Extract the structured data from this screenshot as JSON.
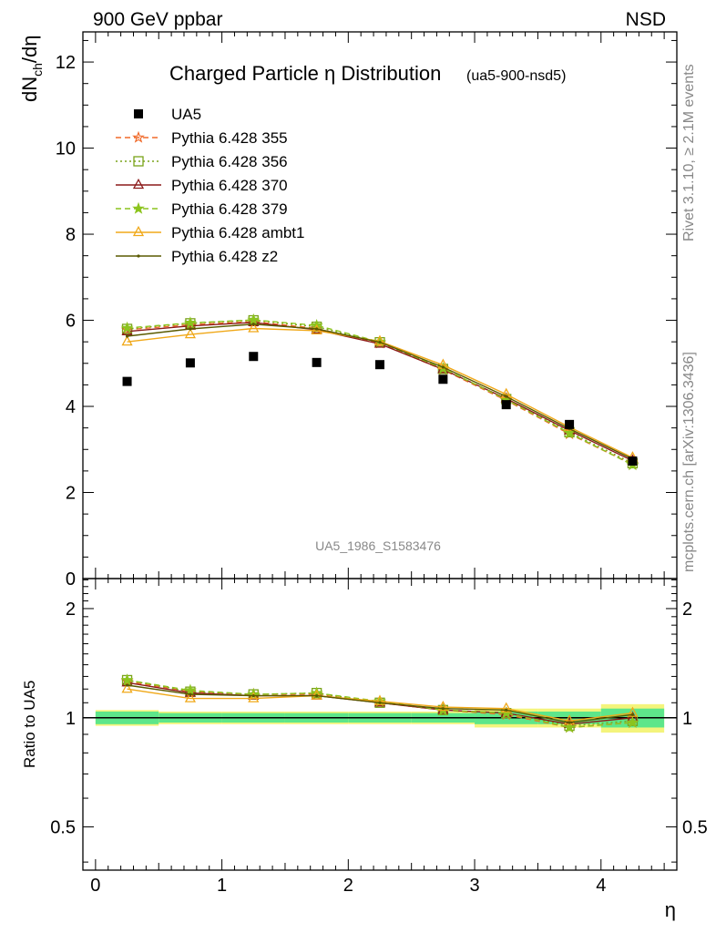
{
  "header": {
    "left": "900 GeV ppbar",
    "right": "NSD"
  },
  "side_text": {
    "rivet": "Rivet 3.1.10, ≥ 2.1M events",
    "mcplots": "mcplots.cern.ch [arXiv:1306.3436]"
  },
  "chart_data": [
    {
      "type": "scatter",
      "panel": "main",
      "title": "Charged Particle η Distribution",
      "subtitle": "(ua5-900-nsd5)",
      "watermark": "UA5_1986_S1583476",
      "ylabel": "dN_ch/dη",
      "xlim": [
        -0.1,
        4.6
      ],
      "ylim": [
        0,
        12.7
      ],
      "yticks": [
        "0",
        "2",
        "4",
        "6",
        "8",
        "10",
        "12"
      ],
      "legend_position": "top-left",
      "x": [
        0.25,
        0.75,
        1.25,
        1.75,
        2.25,
        2.75,
        3.25,
        3.75,
        4.25
      ],
      "series": [
        {
          "name": "UA5",
          "marker": "square",
          "line": "none",
          "color": "#000000",
          "values": [
            4.58,
            5.01,
            5.16,
            5.02,
            4.97,
            4.63,
            4.04,
            3.58,
            2.73
          ]
        },
        {
          "name": "Pythia 6.428 355",
          "marker": "star-open",
          "line": "dashed",
          "color": "#f06a2a",
          "values": [
            5.78,
            5.9,
            5.97,
            5.81,
            5.47,
            4.85,
            4.14,
            3.36,
            2.65
          ]
        },
        {
          "name": "Pythia 6.428 356",
          "marker": "square-open",
          "line": "dotted",
          "color": "#7aa31a",
          "values": [
            5.8,
            5.93,
            6.0,
            5.85,
            5.49,
            4.87,
            4.17,
            3.4,
            2.68
          ]
        },
        {
          "name": "Pythia 6.428 370",
          "marker": "triangle-open",
          "line": "solid",
          "color": "#8b1a1a",
          "values": [
            5.74,
            5.87,
            5.95,
            5.78,
            5.45,
            4.86,
            4.18,
            3.44,
            2.74
          ]
        },
        {
          "name": "Pythia 6.428 379",
          "marker": "star-filled",
          "line": "dashed",
          "color": "#8cc41e",
          "values": [
            5.82,
            5.94,
            6.01,
            5.88,
            5.5,
            4.88,
            4.16,
            3.38,
            2.64
          ]
        },
        {
          "name": "Pythia 6.428 ambt1",
          "marker": "triangle-open",
          "line": "solid",
          "color": "#f0a818",
          "values": [
            5.5,
            5.67,
            5.81,
            5.76,
            5.51,
            4.96,
            4.28,
            3.52,
            2.81
          ]
        },
        {
          "name": "Pythia 6.428 z2",
          "marker": "dot",
          "line": "solid",
          "color": "#5a5a00",
          "values": [
            5.63,
            5.8,
            5.91,
            5.8,
            5.49,
            4.91,
            4.23,
            3.48,
            2.78
          ]
        }
      ]
    },
    {
      "type": "line",
      "panel": "ratio",
      "xlabel": "η",
      "ylabel": "Ratio to UA5",
      "xlim": [
        -0.1,
        4.6
      ],
      "ylim": [
        0.38,
        2.42
      ],
      "log_y": true,
      "xticks": [
        "0",
        "1",
        "2",
        "3",
        "4"
      ],
      "yticks": [
        "0.5",
        "1",
        "2"
      ],
      "x_edges": [
        0,
        0.5,
        1,
        1.5,
        2,
        2.5,
        3,
        3.5,
        4,
        4.5
      ],
      "band_inner": [
        0.04,
        0.03,
        0.03,
        0.03,
        0.03,
        0.03,
        0.04,
        0.04,
        0.06
      ],
      "band_outer": [
        0.05,
        0.04,
        0.04,
        0.04,
        0.04,
        0.04,
        0.06,
        0.06,
        0.09
      ],
      "band_colors": {
        "inner": "#5ee68a",
        "outer": "#f4f47c"
      },
      "x": [
        0.25,
        0.75,
        1.25,
        1.75,
        2.25,
        2.75,
        3.25,
        3.75,
        4.25
      ],
      "series": [
        {
          "name": "Pythia 6.428 355",
          "values": [
            1.26,
            1.18,
            1.16,
            1.16,
            1.1,
            1.05,
            1.02,
            0.94,
            0.97
          ]
        },
        {
          "name": "Pythia 6.428 356",
          "values": [
            1.27,
            1.18,
            1.16,
            1.17,
            1.1,
            1.05,
            1.03,
            0.95,
            0.98
          ]
        },
        {
          "name": "Pythia 6.428 370",
          "values": [
            1.25,
            1.17,
            1.15,
            1.15,
            1.1,
            1.05,
            1.03,
            0.96,
            1.0
          ]
        },
        {
          "name": "Pythia 6.428 379",
          "values": [
            1.27,
            1.19,
            1.16,
            1.17,
            1.11,
            1.05,
            1.03,
            0.94,
            0.97
          ]
        },
        {
          "name": "Pythia 6.428 ambt1",
          "values": [
            1.2,
            1.13,
            1.13,
            1.15,
            1.11,
            1.07,
            1.06,
            0.98,
            1.03
          ]
        },
        {
          "name": "Pythia 6.428 z2",
          "values": [
            1.23,
            1.16,
            1.15,
            1.15,
            1.1,
            1.06,
            1.05,
            0.97,
            1.02
          ]
        }
      ]
    }
  ]
}
